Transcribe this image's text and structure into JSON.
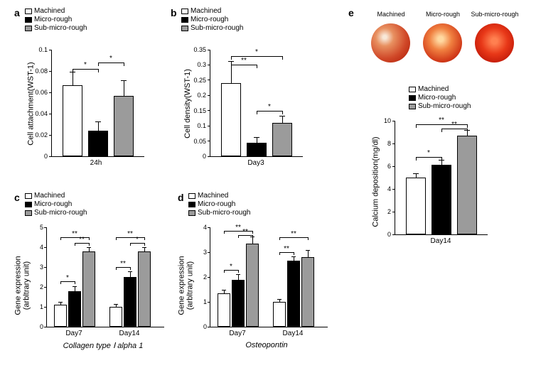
{
  "legend": {
    "items": [
      {
        "label": "Machined",
        "color": "#ffffff"
      },
      {
        "label": "Micro-rough",
        "color": "#000000"
      },
      {
        "label": "Sub-micro-rough",
        "color": "#9b9b9b"
      }
    ]
  },
  "panel_a": {
    "label": "a",
    "ylabel": "Cell attachment(WST-1)",
    "xlabel": "24h",
    "ylim": [
      0,
      0.1
    ],
    "yticks": [
      0,
      0.02,
      0.04,
      0.06,
      0.08,
      0.1
    ],
    "bars": [
      {
        "value": 0.067,
        "err": 0.012,
        "color": "#ffffff"
      },
      {
        "value": 0.024,
        "err": 0.008,
        "color": "#000000"
      },
      {
        "value": 0.057,
        "err": 0.014,
        "color": "#9b9b9b"
      }
    ],
    "sig": [
      {
        "from": 0,
        "to": 1,
        "y": 0.082,
        "stars": "*"
      },
      {
        "from": 1,
        "to": 2,
        "y": 0.088,
        "stars": "*"
      }
    ]
  },
  "panel_b": {
    "label": "b",
    "ylabel": "Cell density(WST-1)",
    "xlabel": "Day3",
    "ylim": [
      0,
      0.35
    ],
    "yticks": [
      0,
      0.05,
      0.1,
      0.15,
      0.2,
      0.25,
      0.3,
      0.35
    ],
    "bars": [
      {
        "value": 0.24,
        "err": 0.07,
        "color": "#ffffff"
      },
      {
        "value": 0.045,
        "err": 0.015,
        "color": "#000000"
      },
      {
        "value": 0.11,
        "err": 0.02,
        "color": "#9b9b9b"
      }
    ],
    "sig": [
      {
        "from": 0,
        "to": 2,
        "y": 0.33,
        "stars": "*"
      },
      {
        "from": 0,
        "to": 1,
        "y": 0.3,
        "stars": "**"
      },
      {
        "from": 1,
        "to": 2,
        "y": 0.15,
        "stars": "*"
      }
    ]
  },
  "panel_c": {
    "label": "c",
    "ylabel": "Gene expression\n(arbltrary unit)",
    "title": "Collagen type Ⅰ alpha 1",
    "xlabels": [
      "Day7",
      "Day14"
    ],
    "ylim": [
      0,
      5
    ],
    "yticks": [
      0,
      1,
      2,
      3,
      4,
      5
    ],
    "groups": [
      {
        "bars": [
          {
            "value": 1.1,
            "err": 0.1,
            "color": "#ffffff"
          },
          {
            "value": 1.8,
            "err": 0.2,
            "color": "#000000"
          },
          {
            "value": 3.8,
            "err": 0.15,
            "color": "#9b9b9b"
          }
        ],
        "sig": [
          {
            "from": 0,
            "to": 2,
            "y": 4.5,
            "stars": "**"
          },
          {
            "from": 0,
            "to": 1,
            "y": 2.3,
            "stars": "*"
          },
          {
            "from": 1,
            "to": 2,
            "y": 4.2,
            "stars": "**"
          }
        ]
      },
      {
        "bars": [
          {
            "value": 1.0,
            "err": 0.1,
            "color": "#ffffff"
          },
          {
            "value": 2.5,
            "err": 0.25,
            "color": "#000000"
          },
          {
            "value": 3.8,
            "err": 0.15,
            "color": "#9b9b9b"
          }
        ],
        "sig": [
          {
            "from": 0,
            "to": 2,
            "y": 4.5,
            "stars": "**"
          },
          {
            "from": 0,
            "to": 1,
            "y": 3.0,
            "stars": "**"
          },
          {
            "from": 1,
            "to": 2,
            "y": 4.2,
            "stars": "*"
          }
        ]
      }
    ]
  },
  "panel_d": {
    "label": "d",
    "ylabel": "Gene expression\n(arbltrary unit)",
    "title": "Osteopontin",
    "xlabels": [
      "Day7",
      "Day14"
    ],
    "ylim": [
      0,
      4
    ],
    "yticks": [
      0,
      1,
      2,
      3,
      4
    ],
    "groups": [
      {
        "bars": [
          {
            "value": 1.35,
            "err": 0.1,
            "color": "#ffffff"
          },
          {
            "value": 1.9,
            "err": 0.2,
            "color": "#000000"
          },
          {
            "value": 3.35,
            "err": 0.25,
            "color": "#9b9b9b"
          }
        ],
        "sig": [
          {
            "from": 0,
            "to": 2,
            "y": 3.85,
            "stars": "**"
          },
          {
            "from": 0,
            "to": 1,
            "y": 2.3,
            "stars": "*"
          },
          {
            "from": 1,
            "to": 2,
            "y": 3.7,
            "stars": "**"
          }
        ]
      },
      {
        "bars": [
          {
            "value": 1.0,
            "err": 0.1,
            "color": "#ffffff"
          },
          {
            "value": 2.65,
            "err": 0.15,
            "color": "#000000"
          },
          {
            "value": 2.8,
            "err": 0.25,
            "color": "#9b9b9b"
          }
        ],
        "sig": [
          {
            "from": 0,
            "to": 2,
            "y": 3.6,
            "stars": "**"
          },
          {
            "from": 0,
            "to": 1,
            "y": 3.0,
            "stars": "**"
          }
        ]
      }
    ]
  },
  "panel_e": {
    "label": "e",
    "image_labels": [
      "Machined",
      "Micro-rough",
      "Sub-micro-rough"
    ],
    "image_gradients": [
      "radial-gradient(circle at 35% 35%, #f8e8d8 5%, #e89060 25%, #d04828 60%, #b82810 85%)",
      "radial-gradient(circle at 45% 40%, #ffd8a0 8%, #f08040 35%, #d03818 70%, #a82008 92%)",
      "radial-gradient(circle at 50% 45%, #ff8050 10%, #e83818 45%, #c01808 80%, #a01000 95%)"
    ],
    "ylabel": "Calcium deposition(mg/dl)",
    "xlabel": "Day14",
    "ylim": [
      0,
      10
    ],
    "yticks": [
      0,
      2,
      4,
      6,
      8,
      10
    ],
    "bars": [
      {
        "value": 5.0,
        "err": 0.3,
        "color": "#ffffff"
      },
      {
        "value": 6.1,
        "err": 0.4,
        "color": "#000000"
      },
      {
        "value": 8.7,
        "err": 0.4,
        "color": "#9b9b9b"
      }
    ],
    "sig": [
      {
        "from": 0,
        "to": 2,
        "y": 9.7,
        "stars": "**"
      },
      {
        "from": 0,
        "to": 1,
        "y": 6.8,
        "stars": "*"
      },
      {
        "from": 1,
        "to": 2,
        "y": 9.3,
        "stars": "**"
      }
    ]
  }
}
